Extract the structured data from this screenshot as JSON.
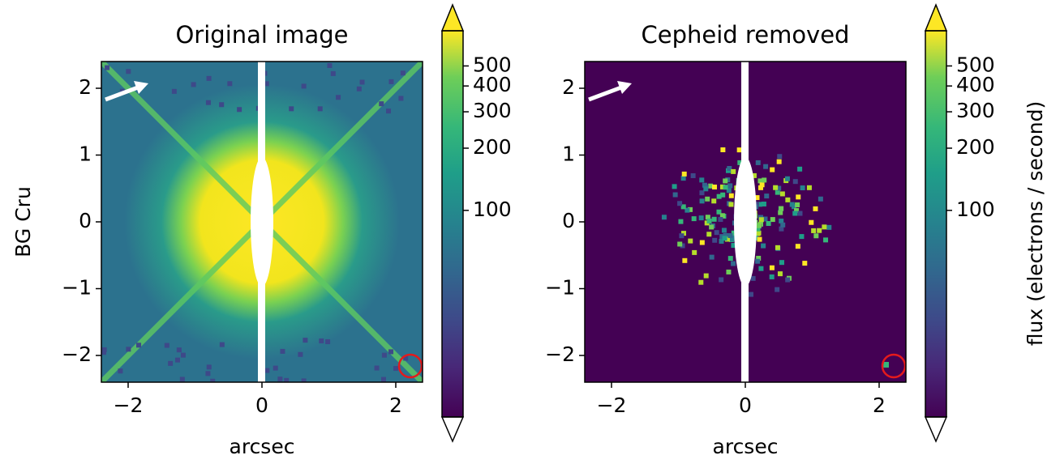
{
  "chart_data": [
    {
      "type": "image",
      "title": "Original image",
      "xlabel": "arcsec",
      "ylabel": "BG Cru",
      "xlim": [
        -2.4,
        2.4
      ],
      "ylim": [
        -2.4,
        2.4
      ],
      "xticks": [
        {
          "value": -2,
          "label": "−2"
        },
        0,
        2
      ],
      "yticks": [
        {
          "value": -2,
          "label": "−2"
        },
        {
          "value": -1,
          "label": "−1"
        },
        0,
        1,
        2
      ],
      "colorbar": {
        "scale": "log",
        "lim": [
          10,
          740
        ],
        "ticks": [
          100,
          200,
          300,
          400,
          500
        ]
      }
    },
    {
      "type": "image",
      "title": "Cepheid removed",
      "xlabel": "arcsec",
      "xlim": [
        -2.4,
        2.4
      ],
      "ylim": [
        -2.4,
        2.4
      ],
      "xticks": [
        {
          "value": -2,
          "label": "−2"
        },
        0,
        2
      ],
      "yticks": [
        {
          "value": -2,
          "label": "−2"
        },
        {
          "value": -1,
          "label": "−1"
        },
        0,
        1,
        2
      ],
      "colorbar": {
        "scale": "log",
        "lim": [
          10,
          740
        ],
        "ticks": [
          100,
          200,
          300,
          400,
          500
        ],
        "label": "flux (electrons / second)"
      }
    }
  ]
}
